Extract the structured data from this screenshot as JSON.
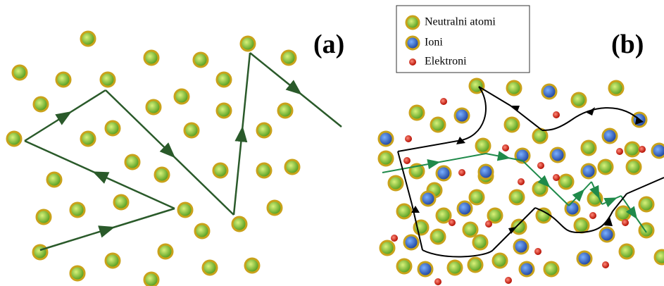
{
  "panels": [
    {
      "label": "(a)"
    },
    {
      "label": "(b)"
    }
  ],
  "legend": [
    {
      "label": "Neutralni atomi"
    },
    {
      "label": "Ioni"
    },
    {
      "label": "Elektroni"
    }
  ]
}
